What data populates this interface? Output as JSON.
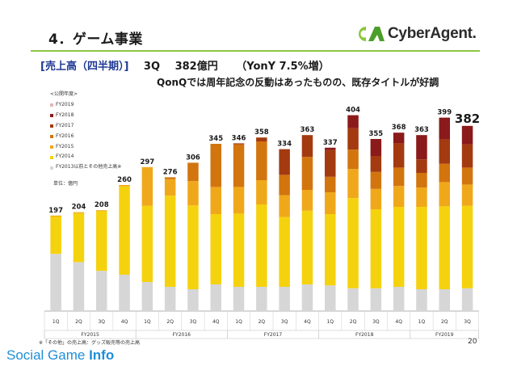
{
  "header": {
    "title": "4．ゲーム事業",
    "logo_text": "CyberAgent.",
    "logo_colors": [
      "#8cc63f",
      "#4b9e2a"
    ],
    "divider_color": "#8cc63f"
  },
  "headline": {
    "segment": "[売上高（四半期）]",
    "quarter": "3Q",
    "value": "382億円",
    "yoy": "（YonY 7.5%増）",
    "subtitle": "QonQでは周年記念の反動はあったものの、既存タイトルが好調"
  },
  "legend": {
    "heading": "<公開年度>",
    "items": [
      {
        "label": "FY2019",
        "color": "#e2b8b8"
      },
      {
        "label": "FY2018",
        "color": "#8b1a1a"
      },
      {
        "label": "FY2017",
        "color": "#a43a10"
      },
      {
        "label": "FY2016",
        "color": "#d2750f"
      },
      {
        "label": "FY2015",
        "color": "#f0a81b"
      },
      {
        "label": "FY2014",
        "color": "#f5d20e"
      },
      {
        "label": "FY2013以前とその他売上高※",
        "color": "#d6d6d6"
      }
    ]
  },
  "unit_note": "単位：億円",
  "footnote": "※「その他」の売上高：グッズ販売等の売上高",
  "page_number": "20",
  "watermark": {
    "word1": "Social",
    "word2": "Game",
    "word3": "Info"
  },
  "chart_data": {
    "type": "bar",
    "stacked": true,
    "unit": "億円",
    "categories": [
      "1Q",
      "2Q",
      "3Q",
      "4Q",
      "1Q",
      "2Q",
      "3Q",
      "4Q",
      "1Q",
      "2Q",
      "3Q",
      "4Q",
      "1Q",
      "2Q",
      "3Q",
      "4Q",
      "1Q",
      "2Q",
      "3Q"
    ],
    "fiscal_years": [
      {
        "label": "FY2015",
        "quarters": 4
      },
      {
        "label": "FY2016",
        "quarters": 4
      },
      {
        "label": "FY2017",
        "quarters": 4
      },
      {
        "label": "FY2018",
        "quarters": 4
      },
      {
        "label": "FY2019",
        "quarters": 3
      }
    ],
    "totals": [
      197,
      204,
      208,
      260,
      297,
      276,
      306,
      345,
      346,
      358,
      334,
      363,
      337,
      404,
      355,
      368,
      363,
      399,
      382
    ],
    "highlight_index": 18,
    "series": [
      {
        "name": "FY2013以前とその他売上高※",
        "color": "#d6d6d6",
        "values": [
          118,
          101,
          83,
          75,
          60,
          50,
          45,
          55,
          50,
          50,
          50,
          55,
          53,
          47,
          47,
          50,
          45,
          45,
          47
        ]
      },
      {
        "name": "FY2014",
        "color": "#f5d20e",
        "values": [
          77,
          101,
          123,
          182,
          157,
          188,
          173,
          145,
          151,
          170,
          144,
          152,
          147,
          186,
          163,
          165,
          170,
          171,
          170
        ]
      },
      {
        "name": "FY2015",
        "color": "#f0a81b",
        "values": [
          2,
          2,
          2,
          3,
          80,
          34,
          50,
          56,
          55,
          50,
          45,
          43,
          45,
          60,
          42,
          43,
          40,
          50,
          44
        ]
      },
      {
        "name": "FY2016",
        "color": "#d2750f",
        "values": [
          0,
          0,
          0,
          0,
          0,
          4,
          38,
          89,
          88,
          80,
          42,
          68,
          32,
          40,
          35,
          38,
          30,
          38,
          35
        ]
      },
      {
        "name": "FY2017",
        "color": "#a43a10",
        "values": [
          0,
          0,
          0,
          0,
          0,
          0,
          0,
          0,
          2,
          8,
          53,
          45,
          55,
          44,
          33,
          50,
          28,
          50,
          48
        ]
      },
      {
        "name": "FY2018",
        "color": "#8b1a1a",
        "values": [
          0,
          0,
          0,
          0,
          0,
          0,
          0,
          0,
          0,
          0,
          0,
          0,
          5,
          27,
          35,
          22,
          50,
          45,
          38
        ]
      },
      {
        "name": "FY2019",
        "color": "#e2b8b8",
        "values": [
          0,
          0,
          0,
          0,
          0,
          0,
          0,
          0,
          0,
          0,
          0,
          0,
          0,
          0,
          0,
          0,
          0,
          0,
          0
        ]
      }
    ]
  }
}
